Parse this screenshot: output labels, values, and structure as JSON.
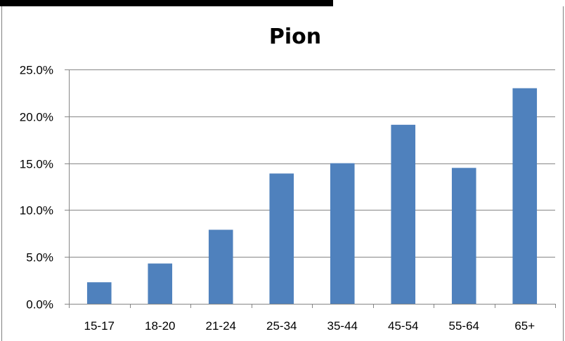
{
  "chart_data": {
    "type": "bar",
    "title": "Pion",
    "xlabel": "",
    "ylabel": "",
    "categories": [
      "15-17",
      "18-20",
      "21-24",
      "25-34",
      "35-44",
      "45-54",
      "55-64",
      "65+"
    ],
    "values": [
      2.3,
      4.3,
      7.9,
      13.9,
      15.0,
      19.1,
      14.5,
      23.0
    ],
    "ylim": [
      0,
      25
    ],
    "yticks": [
      0,
      5,
      10,
      15,
      20,
      25
    ],
    "ytick_labels": [
      "0.0%",
      "5.0%",
      "10.0%",
      "15.0%",
      "20.0%",
      "25.0%"
    ],
    "grid": true,
    "legend": "none",
    "bar_color": "#4f81bd"
  }
}
